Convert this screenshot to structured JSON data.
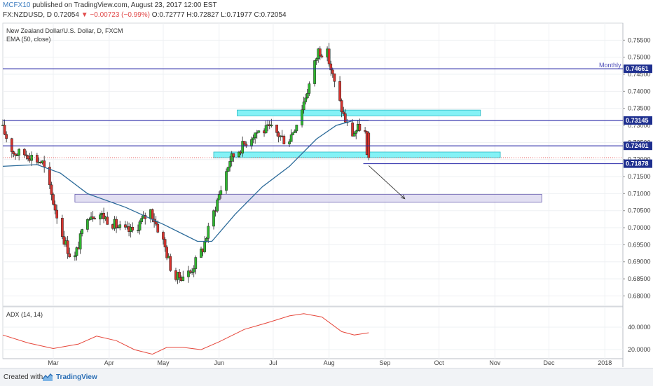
{
  "header": {
    "publisher": "MCFX10",
    "published_text": "published on TradingView.com, August 23, 2017 12:00 EST",
    "symbol": "FX:NZDUSD, D",
    "last": "0.72054",
    "change": "▼ −0.00723 (−0.99%)",
    "ohlc_text": "O:0.72777 H:0.72827 L:0.71977 C:0.72054"
  },
  "legend": {
    "instrument": "New Zealand Dollar/U.S. Dollar, D, FXCM",
    "indicator": "EMA (50, close)"
  },
  "adx": {
    "label": "ADX (14, 14)"
  },
  "footer": {
    "created_with": "Created with",
    "brand": "TradingView"
  },
  "colors": {
    "up": "#2eb82e",
    "down": "#d8342f",
    "ema": "#2b6a99",
    "hline": "#2a2aa8",
    "cyan_zone": "#6ff0f5",
    "purple_zone": "#d8d4ee",
    "adx": "#e6463a",
    "price_marker": "#e14a4a",
    "grid": "#eef0f3"
  },
  "chart_data": [
    {
      "type": "candlestick",
      "title": "New Zealand Dollar/U.S. Dollar, D, FXCM",
      "x_axis": {
        "range": [
          "2017-02-01",
          "2018-01-11"
        ],
        "ticks": [
          {
            "date": "2017-03-01",
            "label": "Mar"
          },
          {
            "date": "2017-04-01",
            "label": "Apr"
          },
          {
            "date": "2017-05-01",
            "label": "May"
          },
          {
            "date": "2017-06-01",
            "label": "Jun"
          },
          {
            "date": "2017-07-01",
            "label": "Jul"
          },
          {
            "date": "2017-08-01",
            "label": "Aug"
          },
          {
            "date": "2017-09-01",
            "label": "Sep"
          },
          {
            "date": "2017-10-01",
            "label": "Oct"
          },
          {
            "date": "2017-11-01",
            "label": "Nov"
          },
          {
            "date": "2017-12-01",
            "label": "Dec"
          },
          {
            "date": "2018-01-01",
            "label": "2018"
          }
        ]
      },
      "y_axis": {
        "range": [
          0.677,
          0.76
        ],
        "ticks": [
          "0.75500",
          "0.75000",
          "0.74500",
          "0.74000",
          "0.73500",
          "0.73000",
          "0.72500",
          "0.72000",
          "0.71500",
          "0.71000",
          "0.70500",
          "0.70000",
          "0.69500",
          "0.69000",
          "0.68500",
          "0.68000"
        ]
      },
      "anchors": [
        {
          "date": "2017-02-01",
          "price": 0.73
        },
        {
          "date": "2017-02-08",
          "price": 0.722
        },
        {
          "date": "2017-02-16",
          "price": 0.7215
        },
        {
          "date": "2017-02-24",
          "price": 0.719
        },
        {
          "date": "2017-03-07",
          "price": 0.698
        },
        {
          "date": "2017-03-13",
          "price": 0.6895
        },
        {
          "date": "2017-03-21",
          "price": 0.704
        },
        {
          "date": "2017-03-28",
          "price": 0.704
        },
        {
          "date": "2017-04-10",
          "price": 0.699
        },
        {
          "date": "2017-04-15",
          "price": 0.699
        },
        {
          "date": "2017-04-25",
          "price": 0.705
        },
        {
          "date": "2017-05-02",
          "price": 0.696
        },
        {
          "date": "2017-05-08",
          "price": 0.685
        },
        {
          "date": "2017-05-17",
          "price": 0.687
        },
        {
          "date": "2017-05-24",
          "price": 0.694
        },
        {
          "date": "2017-06-01",
          "price": 0.708
        },
        {
          "date": "2017-06-08",
          "price": 0.72
        },
        {
          "date": "2017-06-15",
          "price": 0.724
        },
        {
          "date": "2017-06-22",
          "price": 0.728
        },
        {
          "date": "2017-07-01",
          "price": 0.729
        },
        {
          "date": "2017-07-10",
          "price": 0.725
        },
        {
          "date": "2017-07-16",
          "price": 0.732
        },
        {
          "date": "2017-07-22",
          "price": 0.742
        },
        {
          "date": "2017-07-27",
          "price": 0.752
        },
        {
          "date": "2017-08-01",
          "price": 0.751
        },
        {
          "date": "2017-08-06",
          "price": 0.74
        },
        {
          "date": "2017-08-10",
          "price": 0.733
        },
        {
          "date": "2017-08-14",
          "price": 0.727
        },
        {
          "date": "2017-08-19",
          "price": 0.7295
        },
        {
          "date": "2017-08-22",
          "price": 0.7277
        },
        {
          "date": "2017-08-23",
          "price": 0.7205
        }
      ],
      "last_candle": {
        "date": "2017-08-23",
        "open": 0.72777,
        "high": 0.72827,
        "low": 0.71977,
        "close": 0.72054
      },
      "ema": {
        "name": "EMA (50, close)",
        "points": [
          {
            "date": "2017-02-01",
            "value": 0.718
          },
          {
            "date": "2017-02-20",
            "value": 0.7185
          },
          {
            "date": "2017-03-05",
            "value": 0.716
          },
          {
            "date": "2017-03-20",
            "value": 0.71
          },
          {
            "date": "2017-04-10",
            "value": 0.706
          },
          {
            "date": "2017-05-01",
            "value": 0.701
          },
          {
            "date": "2017-05-20",
            "value": 0.696
          },
          {
            "date": "2017-05-28",
            "value": 0.696
          },
          {
            "date": "2017-06-10",
            "value": 0.704
          },
          {
            "date": "2017-06-25",
            "value": 0.712
          },
          {
            "date": "2017-07-10",
            "value": 0.718
          },
          {
            "date": "2017-07-25",
            "value": 0.726
          },
          {
            "date": "2017-08-05",
            "value": 0.73
          },
          {
            "date": "2017-08-15",
            "value": 0.7315
          },
          {
            "date": "2017-08-23",
            "value": 0.7315
          }
        ]
      },
      "horizontal_lines": [
        {
          "price": 0.74661,
          "label": "0.74661",
          "text": "Monthly",
          "from": "2017-02-01"
        },
        {
          "price": 0.73145,
          "label": "0.73145",
          "from": "2017-02-01"
        },
        {
          "price": 0.72401,
          "label": "0.72401",
          "from": "2017-02-01"
        },
        {
          "price": 0.71878,
          "label": "0.71878",
          "from": "2017-08-20"
        }
      ],
      "price_line": {
        "price": 0.72054
      },
      "zones": [
        {
          "name": "upper-resistance-zone",
          "from": "2017-06-11",
          "to": "2017-10-24",
          "top": 0.7345,
          "bottom": 0.7328
        },
        {
          "name": "support-zone",
          "from": "2017-05-29",
          "to": "2017-11-04",
          "top": 0.7222,
          "bottom": 0.7205
        },
        {
          "name": "target-zone",
          "from": "2017-03-13",
          "to": "2017-11-27",
          "top": 0.7098,
          "bottom": 0.7075
        }
      ],
      "arrow": {
        "from": {
          "date": "2017-08-23",
          "price": 0.7182
        },
        "to": {
          "date": "2017-09-12",
          "price": 0.7085
        }
      }
    },
    {
      "type": "line",
      "title": "ADX (14, 14)",
      "y_axis": {
        "range": [
          12,
          58
        ],
        "ticks": [
          "40.0000",
          "20.0000"
        ]
      },
      "series": [
        {
          "points": [
            {
              "date": "2017-02-01",
              "value": 33
            },
            {
              "date": "2017-02-15",
              "value": 26
            },
            {
              "date": "2017-03-01",
              "value": 21
            },
            {
              "date": "2017-03-15",
              "value": 25
            },
            {
              "date": "2017-03-25",
              "value": 32
            },
            {
              "date": "2017-04-05",
              "value": 28
            },
            {
              "date": "2017-04-15",
              "value": 20
            },
            {
              "date": "2017-04-25",
              "value": 16
            },
            {
              "date": "2017-05-03",
              "value": 22
            },
            {
              "date": "2017-05-12",
              "value": 22
            },
            {
              "date": "2017-05-22",
              "value": 20
            },
            {
              "date": "2017-06-01",
              "value": 27
            },
            {
              "date": "2017-06-15",
              "value": 38
            },
            {
              "date": "2017-06-28",
              "value": 44
            },
            {
              "date": "2017-07-10",
              "value": 50
            },
            {
              "date": "2017-07-18",
              "value": 52
            },
            {
              "date": "2017-07-28",
              "value": 49
            },
            {
              "date": "2017-08-08",
              "value": 36
            },
            {
              "date": "2017-08-15",
              "value": 33
            },
            {
              "date": "2017-08-23",
              "value": 35
            }
          ]
        }
      ]
    }
  ]
}
